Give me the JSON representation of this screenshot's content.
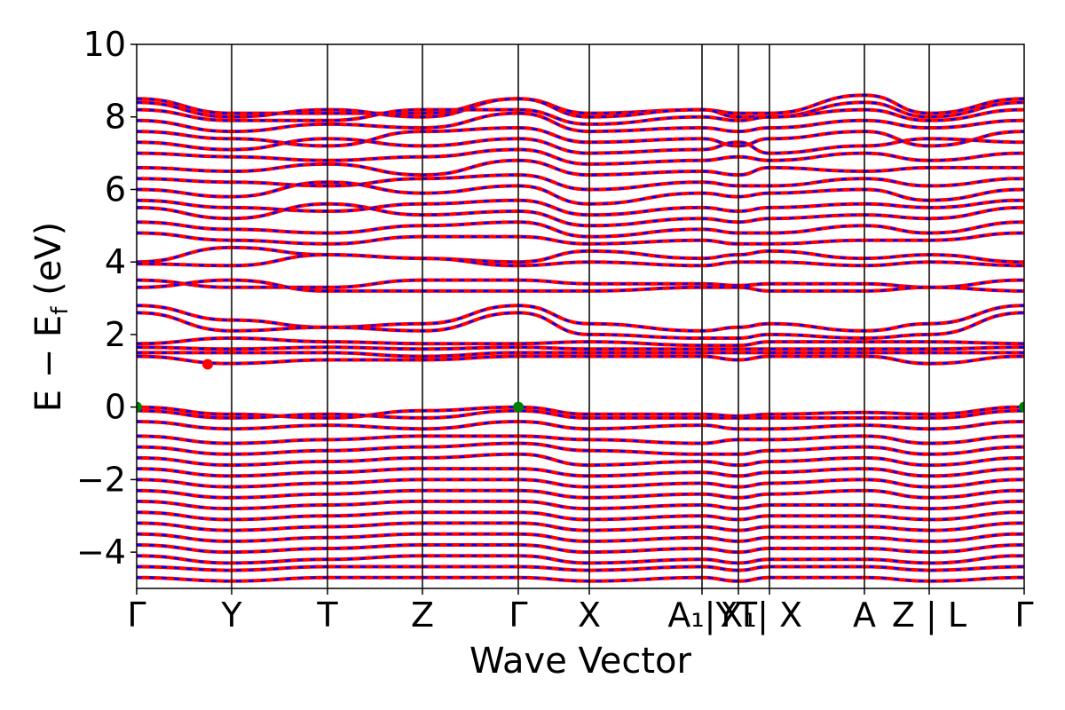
{
  "chart_data": {
    "type": "line",
    "xlabel": "Wave Vector",
    "ylabel": "E − Ef (eV)",
    "ylabel_parts": {
      "main": "E − E",
      "sub": "f",
      "unit": " (eV)"
    },
    "ylim": [
      -5,
      10
    ],
    "y_ticks": [
      "10",
      "8",
      "6",
      "4",
      "2",
      "0",
      "−2",
      "−4"
    ],
    "y_tick_values": [
      10,
      8,
      6,
      4,
      2,
      0,
      -2,
      -4
    ],
    "xlim": [
      0,
      1
    ],
    "high_symmetry_points": [
      {
        "label": "Γ",
        "x": 0.0
      },
      {
        "label": "Y",
        "x": 0.107
      },
      {
        "label": "T",
        "x": 0.215
      },
      {
        "label": "Z",
        "x": 0.322
      },
      {
        "label": "Γ",
        "x": 0.43
      },
      {
        "label": "X",
        "x": 0.51
      },
      {
        "label": "A₁|Y",
        "x": 0.637
      },
      {
        "label": "X₁",
        "x": 0.678
      },
      {
        "label": "T| X",
        "x": 0.713
      },
      {
        "label": "A",
        "x": 0.82
      },
      {
        "label": "Z | L",
        "x": 0.893
      },
      {
        "label": "Γ",
        "x": 1.0
      }
    ],
    "series": [
      {
        "color": "#ff0000",
        "style": "solid"
      },
      {
        "color": "#0000ff",
        "style": "dashed"
      }
    ],
    "markers": [
      {
        "x": 0.0,
        "y": 0.0,
        "color": "#008000"
      },
      {
        "x": 0.43,
        "y": 0.0,
        "color": "#008000"
      },
      {
        "x": 1.0,
        "y": 0.0,
        "color": "#008000"
      },
      {
        "x": 0.08,
        "y": 1.18,
        "color": "#ff0000"
      }
    ],
    "bands": [
      [
        8.5,
        8.1,
        8.1,
        8.1,
        8.5,
        8.1,
        8.2,
        8.1,
        8.1,
        8.6,
        8.1,
        8.5
      ],
      [
        8.4,
        8.0,
        8.2,
        8.0,
        8.5,
        8.0,
        8.2,
        8.0,
        8.0,
        8.4,
        8.0,
        8.4
      ],
      [
        8.2,
        7.9,
        7.9,
        8.2,
        8.2,
        7.8,
        8.0,
        7.9,
        8.0,
        8.2,
        7.9,
        8.2
      ],
      [
        7.9,
        7.6,
        7.8,
        7.7,
        8.1,
        7.6,
        7.7,
        7.6,
        7.7,
        7.9,
        7.7,
        7.9
      ],
      [
        7.6,
        7.4,
        7.2,
        7.6,
        7.7,
        7.3,
        7.4,
        7.2,
        7.4,
        7.6,
        7.2,
        7.6
      ],
      [
        7.3,
        7.1,
        7.4,
        7.2,
        7.4,
        7.0,
        7.1,
        7.3,
        7.0,
        7.2,
        7.4,
        7.3
      ],
      [
        7.0,
        6.9,
        6.8,
        6.9,
        7.1,
        6.7,
        6.8,
        6.9,
        6.8,
        7.0,
        6.8,
        7.0
      ],
      [
        6.6,
        6.5,
        6.7,
        6.4,
        6.8,
        6.4,
        6.5,
        6.4,
        6.6,
        6.5,
        6.6,
        6.6
      ],
      [
        6.3,
        6.2,
        6.1,
        6.3,
        6.4,
        6.0,
        6.2,
        6.1,
        6.1,
        6.3,
        6.1,
        6.3
      ],
      [
        6.0,
        5.8,
        6.2,
        5.9,
        6.1,
        5.6,
        5.9,
        5.8,
        5.9,
        6.0,
        5.7,
        6.0
      ],
      [
        5.7,
        5.5,
        5.4,
        5.6,
        5.7,
        5.3,
        5.5,
        5.4,
        5.5,
        5.6,
        5.5,
        5.7
      ],
      [
        5.5,
        5.2,
        5.6,
        5.3,
        5.4,
        5.0,
        5.2,
        5.1,
        5.2,
        5.3,
        5.2,
        5.5
      ],
      [
        5.1,
        4.9,
        4.8,
        5.0,
        5.1,
        4.7,
        4.9,
        4.8,
        4.8,
        5.0,
        4.8,
        5.1
      ],
      [
        4.8,
        4.6,
        4.5,
        4.7,
        4.7,
        4.5,
        4.6,
        4.5,
        4.5,
        4.6,
        4.6,
        4.8
      ],
      [
        4.0,
        4.4,
        4.2,
        4.1,
        4.0,
        4.3,
        4.1,
        4.2,
        4.3,
        4.1,
        4.2,
        4.0
      ],
      [
        3.95,
        3.9,
        4.2,
        4.1,
        3.9,
        4.0,
        3.9,
        4.0,
        4.0,
        3.9,
        4.0,
        3.9
      ],
      [
        3.5,
        3.3,
        3.3,
        3.5,
        3.5,
        3.4,
        3.4,
        3.35,
        3.4,
        3.4,
        3.3,
        3.5
      ],
      [
        3.3,
        3.5,
        3.2,
        3.2,
        3.2,
        3.2,
        3.3,
        3.3,
        3.2,
        3.2,
        3.3,
        3.2
      ],
      [
        2.8,
        2.4,
        2.2,
        2.3,
        2.8,
        2.3,
        2.1,
        2.2,
        2.3,
        2.1,
        2.3,
        2.8
      ],
      [
        2.6,
        2.1,
        2.2,
        2.1,
        2.6,
        2.0,
        1.9,
        1.9,
        2.0,
        1.9,
        2.0,
        2.6
      ],
      [
        1.75,
        1.9,
        1.8,
        1.75,
        1.75,
        1.8,
        1.7,
        1.7,
        1.8,
        1.8,
        1.8,
        1.75
      ],
      [
        1.65,
        1.6,
        1.65,
        1.6,
        1.65,
        1.6,
        1.6,
        1.6,
        1.6,
        1.6,
        1.6,
        1.65
      ],
      [
        1.5,
        1.5,
        1.5,
        1.4,
        1.5,
        1.5,
        1.5,
        1.5,
        1.5,
        1.5,
        1.5,
        1.5
      ],
      [
        1.4,
        1.2,
        1.3,
        1.3,
        1.4,
        1.4,
        1.4,
        1.3,
        1.4,
        1.4,
        1.2,
        1.4
      ],
      [
        0.0,
        -0.2,
        -0.3,
        -0.1,
        0.0,
        -0.2,
        -0.2,
        -0.25,
        -0.2,
        -0.15,
        -0.2,
        0.0
      ],
      [
        -0.1,
        -0.3,
        -0.2,
        -0.3,
        -0.1,
        -0.3,
        -0.3,
        -0.3,
        -0.3,
        -0.3,
        -0.3,
        -0.1
      ],
      [
        -0.4,
        -0.6,
        -0.5,
        -0.6,
        -0.4,
        -0.6,
        -0.5,
        -0.6,
        -0.6,
        -0.5,
        -0.6,
        -0.4
      ],
      [
        -0.8,
        -1.0,
        -0.9,
        -0.8,
        -0.8,
        -0.9,
        -1.0,
        -0.9,
        -0.9,
        -0.8,
        -1.0,
        -0.8
      ],
      [
        -1.1,
        -1.3,
        -1.2,
        -1.1,
        -1.0,
        -1.2,
        -1.3,
        -1.3,
        -1.2,
        -1.1,
        -1.3,
        -1.1
      ],
      [
        -1.4,
        -1.6,
        -1.5,
        -1.4,
        -1.3,
        -1.6,
        -1.5,
        -1.6,
        -1.5,
        -1.4,
        -1.6,
        -1.4
      ],
      [
        -1.7,
        -1.9,
        -1.8,
        -1.7,
        -1.7,
        -1.9,
        -1.8,
        -1.9,
        -1.8,
        -1.7,
        -1.9,
        -1.7
      ],
      [
        -2.0,
        -2.2,
        -2.1,
        -2.0,
        -2.0,
        -2.2,
        -2.1,
        -2.2,
        -2.1,
        -2.0,
        -2.2,
        -2.0
      ],
      [
        -2.3,
        -2.5,
        -2.4,
        -2.3,
        -2.3,
        -2.5,
        -2.4,
        -2.5,
        -2.4,
        -2.3,
        -2.5,
        -2.3
      ],
      [
        -2.6,
        -2.8,
        -2.7,
        -2.6,
        -2.6,
        -2.8,
        -2.7,
        -2.8,
        -2.7,
        -2.7,
        -2.8,
        -2.6
      ],
      [
        -2.9,
        -3.1,
        -3.0,
        -2.9,
        -2.9,
        -3.1,
        -3.0,
        -3.1,
        -3.0,
        -3.0,
        -3.1,
        -2.9
      ],
      [
        -3.2,
        -3.4,
        -3.3,
        -3.2,
        -3.2,
        -3.4,
        -3.3,
        -3.4,
        -3.3,
        -3.3,
        -3.4,
        -3.2
      ],
      [
        -3.5,
        -3.7,
        -3.6,
        -3.5,
        -3.5,
        -3.7,
        -3.6,
        -3.7,
        -3.6,
        -3.6,
        -3.7,
        -3.5
      ],
      [
        -3.8,
        -4.0,
        -3.9,
        -3.8,
        -3.8,
        -4.0,
        -3.9,
        -4.0,
        -3.9,
        -3.9,
        -4.0,
        -3.8
      ],
      [
        -4.1,
        -4.3,
        -4.2,
        -4.1,
        -4.1,
        -4.3,
        -4.2,
        -4.3,
        -4.2,
        -4.2,
        -4.3,
        -4.1
      ],
      [
        -4.4,
        -4.5,
        -4.4,
        -4.4,
        -4.4,
        -4.5,
        -4.4,
        -4.5,
        -4.4,
        -4.4,
        -4.5,
        -4.4
      ],
      [
        -4.7,
        -4.8,
        -4.7,
        -4.7,
        -4.7,
        -4.8,
        -4.7,
        -4.8,
        -4.7,
        -4.7,
        -4.8,
        -4.7
      ]
    ]
  }
}
